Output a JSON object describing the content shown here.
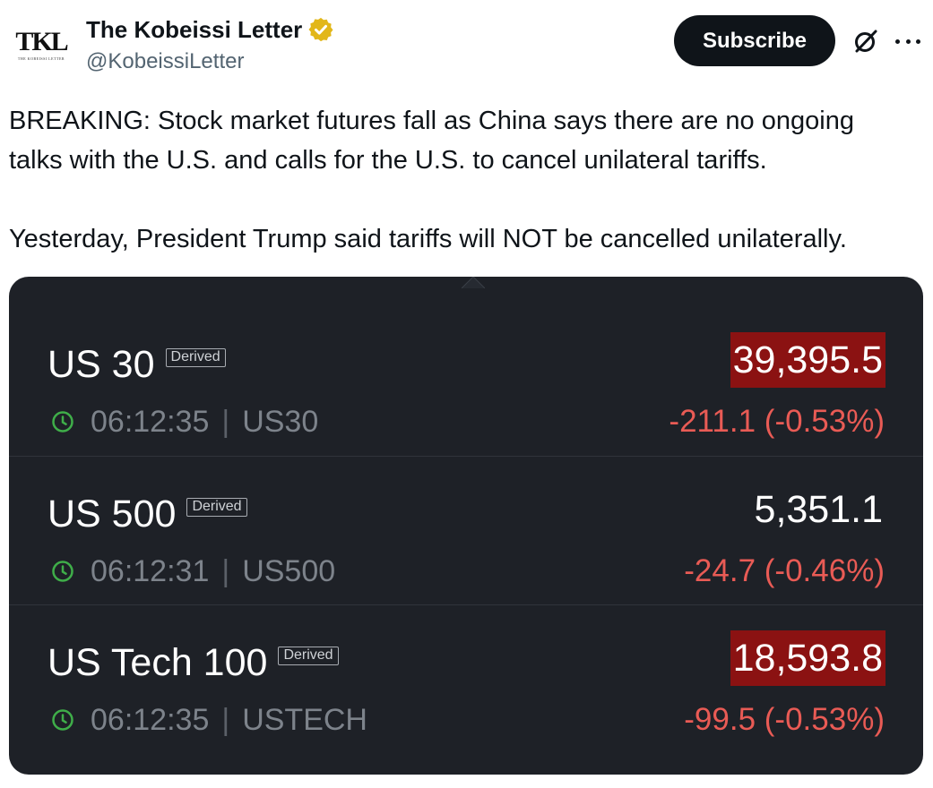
{
  "author": {
    "avatar_text": "TKL",
    "avatar_subtext": "THE KOBEISSI LETTER",
    "display_name": "The Kobeissi Letter",
    "handle": "@KobeissiLetter",
    "verified_icon": "gold-verified-badge-icon"
  },
  "actions": {
    "subscribe_label": "Subscribe",
    "grok_icon": "grok-icon",
    "more_icon": "more-dots-icon"
  },
  "tweet": {
    "line1": "BREAKING: Stock market futures fall as China says there are no ongoing",
    "line2": "talks with the U.S. and calls for the U.S. to cancel unilateral tariffs.",
    "line3": "Yesterday, President Trump said tariffs will NOT be cancelled unilaterally."
  },
  "colors": {
    "card_bg": "#1e2127",
    "negative": "#e95b55",
    "highlight": "#8b1212",
    "clock": "#3fae49"
  },
  "quotes": [
    {
      "name": "US 30",
      "tag": "Derived",
      "time": "06:12:35",
      "separator": "|",
      "symbol": "US30",
      "price": "39,395.5",
      "highlighted": true,
      "change": "-211.1 (-0.53%)"
    },
    {
      "name": "US 500",
      "tag": "Derived",
      "time": "06:12:31",
      "separator": "|",
      "symbol": "US500",
      "price": "5,351.1",
      "highlighted": false,
      "change": "-24.7 (-0.46%)"
    },
    {
      "name": "US Tech 100",
      "tag": "Derived",
      "time": "06:12:35",
      "separator": "|",
      "symbol": "USTECH",
      "price": "18,593.8",
      "highlighted": true,
      "change": "-99.5 (-0.53%)"
    }
  ]
}
